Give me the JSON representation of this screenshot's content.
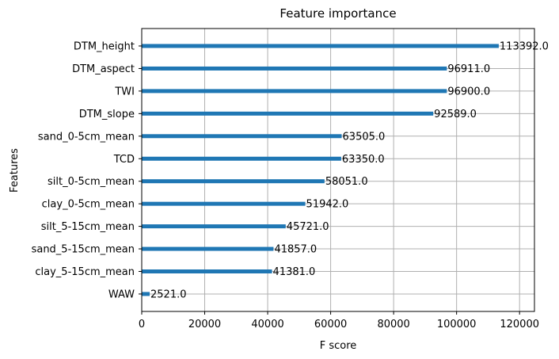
{
  "chart_data": {
    "type": "bar",
    "orientation": "horizontal",
    "title": "Feature importance",
    "xlabel": "F score",
    "ylabel": "Features",
    "categories": [
      "DTM_height",
      "DTM_aspect",
      "TWI",
      "DTM_slope",
      "sand_0-5cm_mean",
      "TCD",
      "silt_0-5cm_mean",
      "clay_0-5cm_mean",
      "silt_5-15cm_mean",
      "sand_5-15cm_mean",
      "clay_5-15cm_mean",
      "WAW"
    ],
    "values": [
      113392.0,
      96911.0,
      96900.0,
      92589.0,
      63505.0,
      63350.0,
      58051.0,
      51942.0,
      45721.0,
      41857.0,
      41381.0,
      2521.0
    ],
    "value_labels": [
      "113392.0",
      "96911.0",
      "96900.0",
      "92589.0",
      "63505.0",
      "63350.0",
      "58051.0",
      "51942.0",
      "45721.0",
      "41857.0",
      "41381.0",
      "2521.0"
    ],
    "xticks": [
      0,
      20000,
      40000,
      60000,
      80000,
      100000,
      120000
    ],
    "xtick_labels": [
      "0",
      "20000",
      "40000",
      "60000",
      "80000",
      "100000",
      "120000"
    ],
    "xlim": [
      0,
      124731
    ],
    "grid": true,
    "bar_color": "#1f77b4"
  }
}
